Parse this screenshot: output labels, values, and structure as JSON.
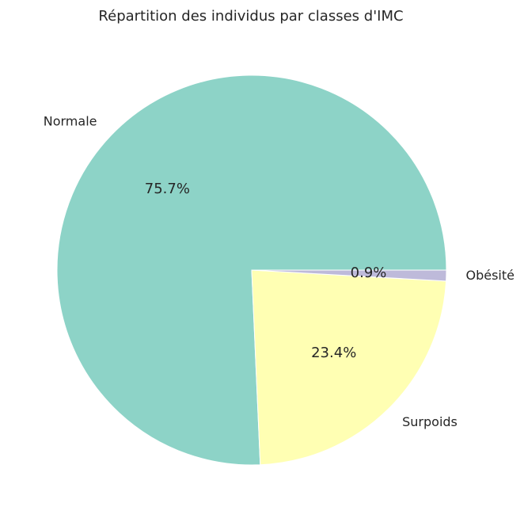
{
  "chart_data": {
    "type": "pie",
    "title": "Répartition des individus par classes d'IMC",
    "categories": [
      "Normale",
      "Surpoids",
      "Obésité"
    ],
    "values": [
      75.7,
      23.4,
      0.9
    ],
    "percent_labels": [
      "75.7%",
      "23.4%",
      "0.9%"
    ],
    "colors": [
      "#8dd3c7",
      "#ffffb3",
      "#bebada"
    ],
    "start_angle_deg": 0,
    "direction": "counterclockwise",
    "edge_color": "#ffffff"
  }
}
